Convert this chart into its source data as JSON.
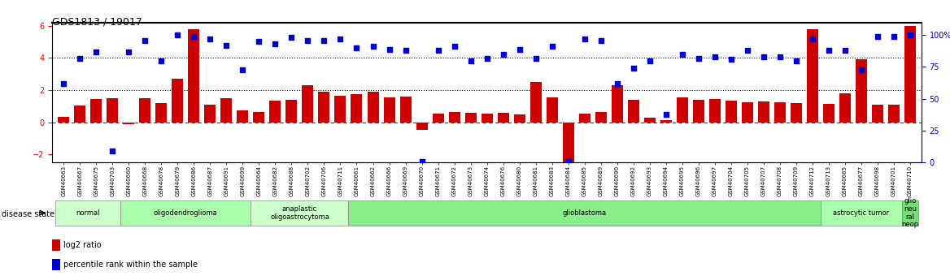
{
  "title": "GDS1813 / 19017",
  "samples": [
    "GSM40663",
    "GSM40667",
    "GSM40675",
    "GSM40703",
    "GSM40660",
    "GSM40668",
    "GSM40678",
    "GSM40679",
    "GSM40686",
    "GSM40687",
    "GSM40691",
    "GSM40699",
    "GSM40664",
    "GSM40682",
    "GSM40688",
    "GSM40702",
    "GSM40706",
    "GSM40711",
    "GSM40661",
    "GSM40662",
    "GSM40666",
    "GSM40669",
    "GSM40670",
    "GSM40671",
    "GSM40672",
    "GSM40673",
    "GSM40674",
    "GSM40676",
    "GSM40680",
    "GSM40681",
    "GSM40683",
    "GSM40684",
    "GSM40685",
    "GSM40689",
    "GSM40690",
    "GSM40692",
    "GSM40693",
    "GSM40694",
    "GSM40695",
    "GSM40696",
    "GSM40697",
    "GSM40704",
    "GSM40705",
    "GSM40707",
    "GSM40708",
    "GSM40709",
    "GSM40712",
    "GSM40713",
    "GSM40665",
    "GSM40677",
    "GSM40698",
    "GSM40701",
    "GSM40710"
  ],
  "log2_ratio": [
    0.35,
    1.05,
    1.45,
    1.5,
    -0.12,
    1.5,
    1.2,
    2.7,
    5.8,
    1.1,
    1.5,
    0.75,
    0.65,
    1.35,
    1.4,
    2.3,
    1.9,
    1.65,
    1.75,
    1.9,
    1.55,
    1.6,
    -0.5,
    0.55,
    0.65,
    0.6,
    0.55,
    0.6,
    0.5,
    2.5,
    1.55,
    -3.2,
    0.55,
    0.65,
    2.3,
    1.4,
    0.3,
    0.12,
    1.55,
    1.4,
    1.45,
    1.35,
    1.25,
    1.3,
    1.25,
    1.2,
    5.8,
    1.15,
    1.8,
    3.9,
    1.1,
    1.1,
    6.0
  ],
  "percentile_pct": [
    62,
    82,
    87,
    9,
    87,
    96,
    80,
    100,
    99,
    97,
    92,
    73,
    95,
    93,
    98,
    96,
    96,
    97,
    90,
    91,
    89,
    88,
    1,
    88,
    91,
    80,
    82,
    85,
    89,
    82,
    91,
    1,
    97,
    96,
    62,
    74,
    80,
    38,
    85,
    82,
    83,
    81,
    88,
    83,
    83,
    80,
    97,
    88,
    88,
    73,
    99,
    99,
    100
  ],
  "disease_groups": [
    {
      "label": "normal",
      "start": 0,
      "end": 4,
      "color": "#ccffcc"
    },
    {
      "label": "oligodendroglioma",
      "start": 4,
      "end": 12,
      "color": "#aaffaa"
    },
    {
      "label": "anaplastic\noligoastrocytoma",
      "start": 12,
      "end": 18,
      "color": "#ccffcc"
    },
    {
      "label": "glioblastoma",
      "start": 18,
      "end": 47,
      "color": "#88ee88"
    },
    {
      "label": "astrocytic tumor",
      "start": 47,
      "end": 52,
      "color": "#aaffaa"
    },
    {
      "label": "glio\nneu\nral\nneop",
      "start": 52,
      "end": 53,
      "color": "#77dd77"
    }
  ],
  "ylim_left": [
    -2.5,
    6.2
  ],
  "ylim_right": [
    0,
    110
  ],
  "yticks_left": [
    -2,
    0,
    2,
    4,
    6
  ],
  "yticks_right": [
    0,
    25,
    50,
    75,
    100
  ],
  "bar_color": "#cc0000",
  "dot_color": "#0000cc",
  "background_color": "#ffffff"
}
